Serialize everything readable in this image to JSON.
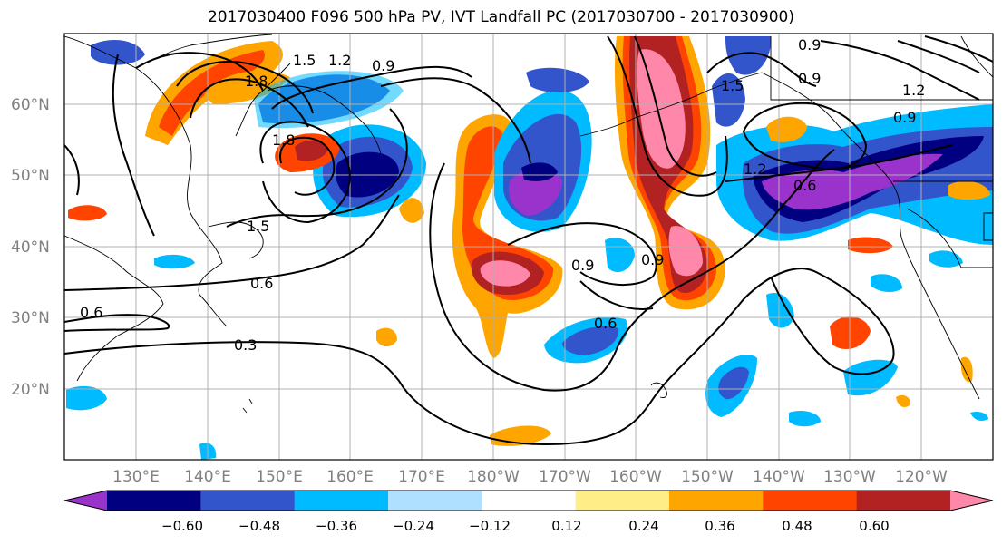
{
  "title": "2017030400 F096 500 hPa PV, IVT Landfall PC (2017030700 - 2017030900)",
  "map": {
    "lat_labels": [
      "60°N",
      "50°N",
      "40°N",
      "30°N",
      "20°N"
    ],
    "lon_labels": [
      "130°E",
      "140°E",
      "150°E",
      "160°E",
      "170°E",
      "180°W",
      "170°W",
      "160°W",
      "150°W",
      "140°W",
      "130°W",
      "120°W"
    ],
    "contour_labels": [
      "0.3",
      "0.6",
      "0.6",
      "0.6",
      "0.6",
      "0.9",
      "0.9",
      "0.9",
      "0.9",
      "0.9",
      "0.9",
      "1.2",
      "1.2",
      "1.2",
      "1.5",
      "1.5",
      "1.5",
      "1.8",
      "1.8"
    ],
    "colors": {
      "-0.60_low": "#9933cc",
      "-0.60": "#000080",
      "-0.48": "#3355cc",
      "-0.36": "#00bbff",
      "-0.24": "#b0e0ff",
      "-0.12": "#ffffff",
      "0.12": "#ffee88",
      "0.24": "#ffa500",
      "0.36": "#ff4400",
      "0.48": "#b22222",
      "0.60": "#ff88aa"
    }
  },
  "colorbar": {
    "ticks": [
      "−0.60",
      "−0.48",
      "−0.36",
      "−0.24",
      "−0.12",
      "0.12",
      "0.24",
      "0.36",
      "0.48",
      "0.60"
    ],
    "segment_colors": [
      "#9933cc",
      "#000080",
      "#3355cc",
      "#00bbff",
      "#b0e0ff",
      "#ffffff",
      "#ffee88",
      "#ffa500",
      "#ff4400",
      "#b22222",
      "#ff88aa"
    ]
  }
}
